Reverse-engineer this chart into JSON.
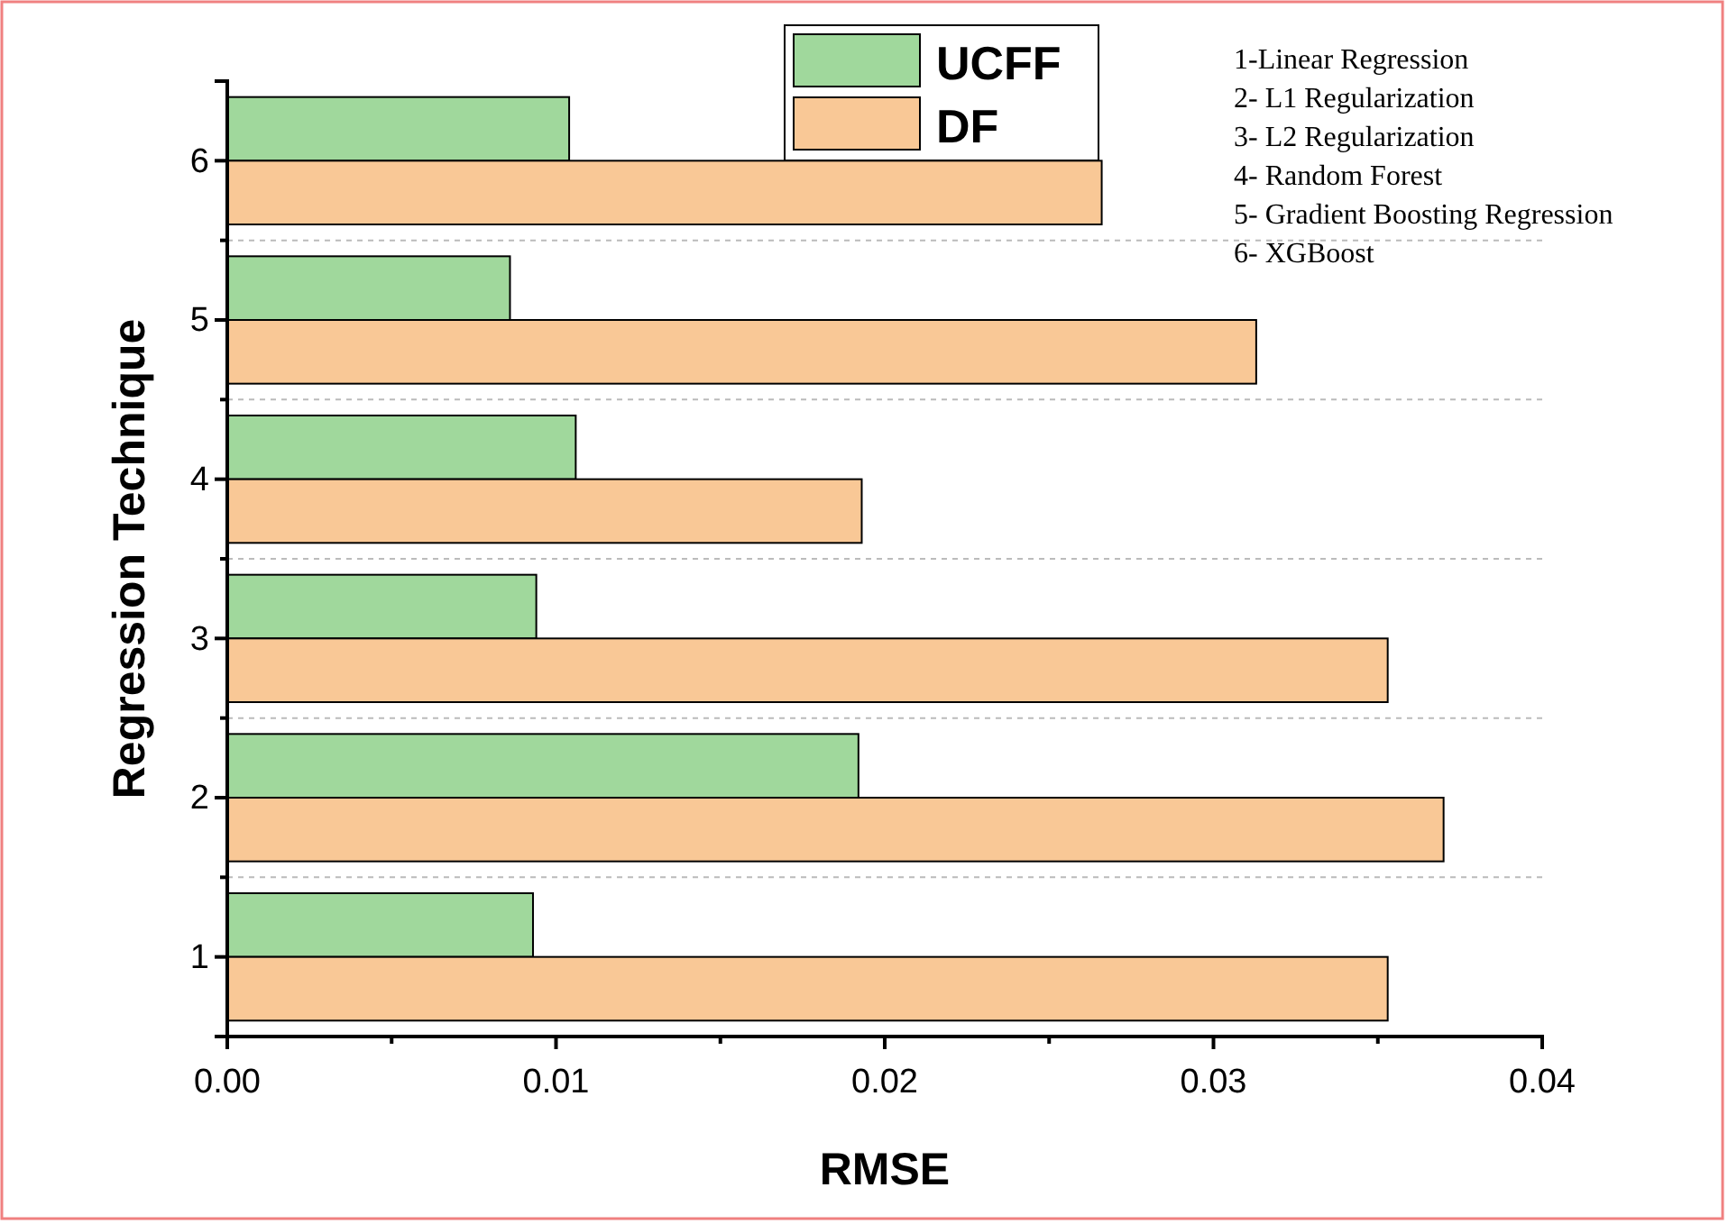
{
  "chart_data": {
    "type": "bar",
    "orientation": "horizontal",
    "xlabel": "RMSE",
    "ylabel": "Regression Technique",
    "categories": [
      "6",
      "5",
      "4",
      "3",
      "2",
      "1"
    ],
    "series": [
      {
        "name": "UCFF",
        "color": "#a0d89c",
        "values": [
          0.0104,
          0.0086,
          0.0106,
          0.0094,
          0.0192,
          0.0093
        ]
      },
      {
        "name": "DF",
        "color": "#f9c896",
        "values": [
          0.0266,
          0.0313,
          0.0193,
          0.0353,
          0.037,
          0.0353
        ]
      }
    ],
    "xlim": [
      0,
      0.04
    ],
    "xticks": [
      {
        "value": 0,
        "label": "0.00"
      },
      {
        "value": 0.01,
        "label": "0.01"
      },
      {
        "value": 0.02,
        "label": "0.02"
      },
      {
        "value": 0.03,
        "label": "0.03"
      },
      {
        "value": 0.04,
        "label": "0.04"
      }
    ],
    "grid": "y",
    "legend": "top",
    "annotations": [
      "1-Linear Regression",
      "2- L1 Regularization",
      "3- L2 Regularization",
      "4-  Random Forest",
      "5- Gradient Boosting Regression",
      "6- XGBoost"
    ]
  }
}
